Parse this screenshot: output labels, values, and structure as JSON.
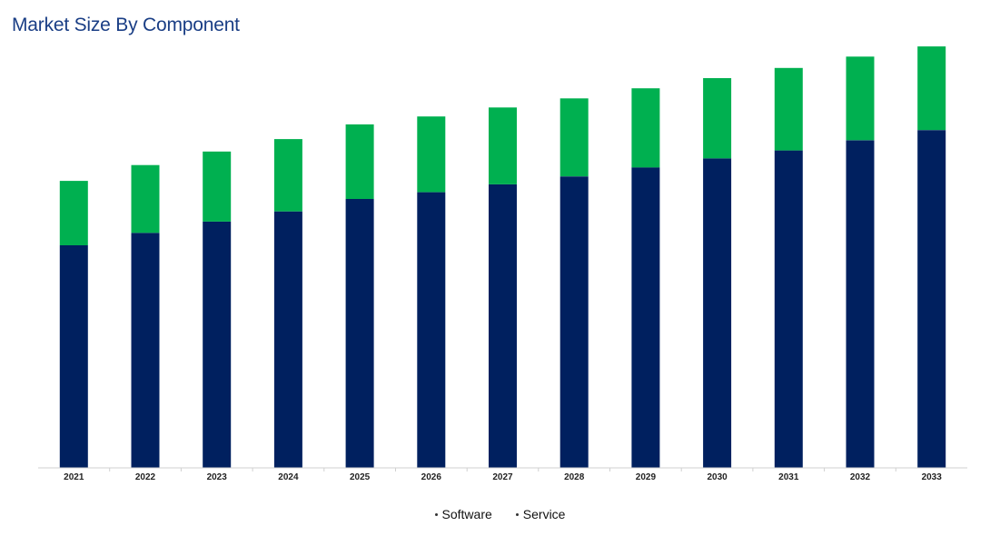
{
  "title": "Market Size By Component",
  "colors": {
    "title": "#1a3e85",
    "software": "#00205f",
    "service": "#00b050"
  },
  "chart_data": {
    "type": "bar",
    "stacked": true,
    "title": "Market Size By Component",
    "xlabel": "",
    "ylabel": "",
    "categories": [
      "2021",
      "2022",
      "2023",
      "2024",
      "2025",
      "2026",
      "2027",
      "2028",
      "2029",
      "2030",
      "2031",
      "2032",
      "2033"
    ],
    "series": [
      {
        "name": "Software",
        "color": "#00205f",
        "values": [
          197,
          208,
          218,
          227,
          238,
          244,
          251,
          258,
          266,
          274,
          281,
          290,
          299
        ]
      },
      {
        "name": "Service",
        "color": "#00b050",
        "values": [
          57,
          60,
          62,
          64,
          66,
          67,
          68,
          69,
          70,
          71,
          73,
          74,
          74
        ]
      }
    ],
    "ylim": [
      0,
      390
    ],
    "grid": false,
    "legend_position": "bottom-center"
  }
}
